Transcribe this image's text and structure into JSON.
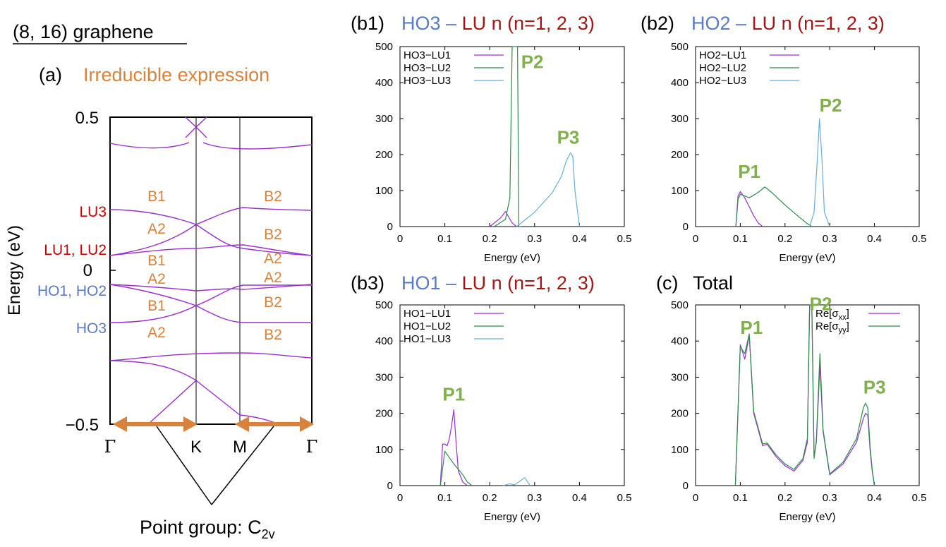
{
  "figure": {
    "heading": "(8, 16) graphene",
    "colors": {
      "purple": "#9b30d0",
      "green": "#2e8b4a",
      "cyan": "#6aaed6",
      "orange": "#d9823b",
      "red": "#cc0000",
      "blue": "#5b7bc4",
      "darkred": "#a51515",
      "lightgreen": "#7fb04a"
    }
  },
  "panel_a": {
    "label": "(a)",
    "subtitle": "Irreducible expression",
    "ylabel": "Energy (eV)",
    "ytick_top": "0.5",
    "ytick_zero": "0",
    "ytick_bottom": "−0.5",
    "kpoints": [
      "Γ",
      "K",
      "M",
      "Γ"
    ],
    "level_labels": [
      "LU3",
      "LU1, LU2",
      "HO1, HO2",
      "HO3"
    ],
    "irreps_left": [
      "B1",
      "A2",
      "B1",
      "A2",
      "B1",
      "A2"
    ],
    "irreps_right": [
      "B2",
      "B2",
      "A2",
      "A2",
      "B2",
      "B2"
    ],
    "point_group_prefix": "Point group: C",
    "point_group_sub": "2v"
  },
  "chart_data": [
    {
      "type": "line",
      "id": "b1",
      "label": "(b1)",
      "title_part1": "HO3",
      "title_dash": " – ",
      "title_part2": "LU n (n=1, 2, 3)",
      "xlabel": "Energy (eV)",
      "xlim": [
        0,
        0.5
      ],
      "ylim": [
        0,
        500
      ],
      "xticks": [
        "0",
        "0.1",
        "0.2",
        "0.3",
        "0.4",
        "0.5"
      ],
      "yticks": [
        "0",
        "100",
        "200",
        "300",
        "400",
        "500"
      ],
      "legend_position": "top-left",
      "series": [
        {
          "name": "HO3−LU1",
          "color": "#9b30d0",
          "x": [
            0.2,
            0.225,
            0.235,
            0.25,
            0.26
          ],
          "y": [
            0,
            25,
            42,
            10,
            0
          ]
        },
        {
          "name": "HO3−LU2",
          "color": "#2e8b4a",
          "x": [
            0.21,
            0.235,
            0.245,
            0.25,
            0.255,
            0.262,
            0.265,
            0.27
          ],
          "y": [
            0,
            20,
            80,
            500,
            500,
            500,
            0,
            0
          ]
        },
        {
          "name": "HO3−LU3",
          "color": "#6aaed6",
          "x": [
            0.26,
            0.3,
            0.34,
            0.36,
            0.37,
            0.38,
            0.385,
            0.39,
            0.4
          ],
          "y": [
            0,
            40,
            95,
            140,
            180,
            205,
            195,
            100,
            0
          ]
        }
      ],
      "annotations": [
        {
          "text": "P2",
          "x": 0.27,
          "y": 440
        },
        {
          "text": "P3",
          "x": 0.35,
          "y": 230
        }
      ]
    },
    {
      "type": "line",
      "id": "b2",
      "label": "(b2)",
      "title_part1": "HO2",
      "title_dash": " – ",
      "title_part2": "LU n (n=1, 2, 3)",
      "xlabel": "Energy (eV)",
      "xlim": [
        0,
        0.5
      ],
      "ylim": [
        0,
        500
      ],
      "xticks": [
        "0",
        "0.1",
        "0.2",
        "0.3",
        "0.4",
        "0.5"
      ],
      "yticks": [
        "0",
        "100",
        "200",
        "300",
        "400",
        "500"
      ],
      "legend_position": "top-left",
      "series": [
        {
          "name": "HO2−LU1",
          "color": "#9b30d0",
          "x": [
            0.09,
            0.095,
            0.1,
            0.11,
            0.12,
            0.13,
            0.14,
            0.15
          ],
          "y": [
            0,
            85,
            97,
            80,
            55,
            30,
            10,
            0
          ]
        },
        {
          "name": "HO2−LU2",
          "color": "#2e8b4a",
          "x": [
            0.09,
            0.095,
            0.1,
            0.12,
            0.14,
            0.155,
            0.17,
            0.2,
            0.23,
            0.25,
            0.26
          ],
          "y": [
            0,
            75,
            90,
            80,
            95,
            110,
            95,
            60,
            28,
            8,
            0
          ]
        },
        {
          "name": "HO2−LU3",
          "color": "#6aaed6",
          "x": [
            0.255,
            0.265,
            0.272,
            0.277,
            0.282,
            0.288,
            0.3
          ],
          "y": [
            0,
            40,
            180,
            300,
            200,
            40,
            0
          ]
        }
      ],
      "annotations": [
        {
          "text": "P2",
          "x": 0.277,
          "y": 320
        },
        {
          "text": "P1",
          "x": 0.095,
          "y": 135
        }
      ]
    },
    {
      "type": "line",
      "id": "b3",
      "label": "(b3)",
      "title_part1": "HO1",
      "title_dash": " – ",
      "title_part2": "LU n (n=1, 2, 3)",
      "xlabel": "Energy (eV)",
      "xlim": [
        0,
        0.5
      ],
      "ylim": [
        0,
        500
      ],
      "xticks": [
        "0",
        "0.1",
        "0.2",
        "0.3",
        "0.4",
        "0.5"
      ],
      "yticks": [
        "0",
        "100",
        "200",
        "300",
        "400",
        "500"
      ],
      "legend_position": "top-left",
      "series": [
        {
          "name": "HO1−LU1",
          "color": "#9b30d0",
          "x": [
            0.09,
            0.095,
            0.1,
            0.105,
            0.11,
            0.115,
            0.12,
            0.125,
            0.13,
            0.14,
            0.15
          ],
          "y": [
            0,
            115,
            115,
            110,
            130,
            165,
            210,
            120,
            40,
            10,
            0
          ]
        },
        {
          "name": "HO1−LU2",
          "color": "#2e8b4a",
          "x": [
            0.09,
            0.1,
            0.12,
            0.14,
            0.15,
            0.16
          ],
          "y": [
            0,
            95,
            60,
            30,
            10,
            0
          ]
        },
        {
          "name": "HO1−LU3",
          "color": "#6aaed6",
          "x": [
            0.23,
            0.245,
            0.255,
            0.265,
            0.278,
            0.29
          ],
          "y": [
            0,
            5,
            2,
            10,
            22,
            0
          ]
        }
      ],
      "annotations": [
        {
          "text": "P1",
          "x": 0.095,
          "y": 235
        }
      ]
    },
    {
      "type": "line",
      "id": "c",
      "label": "(c)",
      "title_part1": "Total",
      "title_dash": "",
      "title_part2": "",
      "xlabel": "Energy (eV)",
      "xlim": [
        0,
        0.5
      ],
      "ylim": [
        0,
        500
      ],
      "xticks": [
        "0",
        "0.1",
        "0.2",
        "0.3",
        "0.4",
        "0.5"
      ],
      "yticks": [
        "0",
        "100",
        "200",
        "300",
        "400",
        "500"
      ],
      "legend_position": "top-right",
      "series": [
        {
          "name": "Re[σxx]",
          "legend_base": "Re[σ",
          "legend_sub": "xx",
          "legend_end": "]",
          "color": "#9b30d0",
          "x": [
            0.089,
            0.1,
            0.11,
            0.12,
            0.13,
            0.15,
            0.16,
            0.18,
            0.2,
            0.22,
            0.24,
            0.25,
            0.255,
            0.26,
            0.265,
            0.27,
            0.278,
            0.285,
            0.3,
            0.33,
            0.36,
            0.375,
            0.38,
            0.385,
            0.39,
            0.395,
            0.4
          ],
          "y": [
            0,
            390,
            350,
            415,
            200,
            110,
            115,
            80,
            55,
            40,
            70,
            120,
            500,
            500,
            80,
            120,
            335,
            150,
            30,
            60,
            120,
            185,
            200,
            195,
            100,
            40,
            0
          ]
        },
        {
          "name": "Re[σyy]",
          "legend_base": "Re[σ",
          "legend_sub": "yy",
          "legend_end": "]",
          "color": "#2e8b4a",
          "x": [
            0.089,
            0.1,
            0.11,
            0.12,
            0.13,
            0.15,
            0.16,
            0.18,
            0.2,
            0.22,
            0.24,
            0.25,
            0.255,
            0.26,
            0.265,
            0.27,
            0.278,
            0.285,
            0.3,
            0.33,
            0.36,
            0.375,
            0.38,
            0.385,
            0.39,
            0.395,
            0.4
          ],
          "y": [
            0,
            385,
            365,
            420,
            205,
            115,
            118,
            85,
            60,
            45,
            75,
            130,
            500,
            500,
            75,
            125,
            365,
            155,
            32,
            65,
            130,
            215,
            228,
            215,
            110,
            45,
            0
          ]
        }
      ],
      "annotations": [
        {
          "text": "P1",
          "x": 0.1,
          "y": 420
        },
        {
          "text": "P2",
          "x": 0.255,
          "y": 485
        },
        {
          "text": "P3",
          "x": 0.375,
          "y": 255
        }
      ]
    }
  ]
}
